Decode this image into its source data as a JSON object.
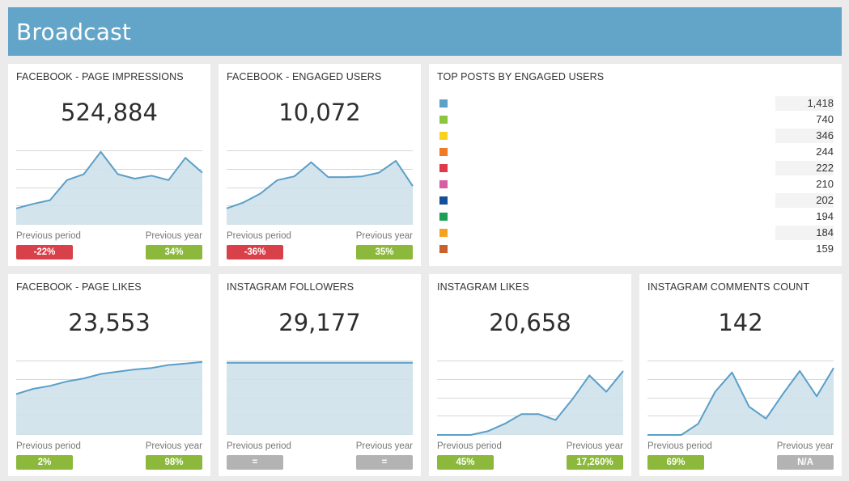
{
  "header": {
    "title": "Broadcast"
  },
  "labels": {
    "previous_period": "Previous period",
    "previous_year": "Previous year"
  },
  "cards": [
    {
      "title": "FACEBOOK - PAGE IMPRESSIONS",
      "value": "524,884",
      "series": [
        0.22,
        0.28,
        0.33,
        0.6,
        0.68,
        0.98,
        0.68,
        0.62,
        0.66,
        0.6,
        0.9,
        0.7
      ],
      "prev_period": {
        "text": "-22%",
        "status": "red"
      },
      "prev_year": {
        "text": "34%",
        "status": "green"
      }
    },
    {
      "title": "FACEBOOK - ENGAGED USERS",
      "value": "10,072",
      "series": [
        0.22,
        0.3,
        0.42,
        0.6,
        0.65,
        0.84,
        0.64,
        0.64,
        0.65,
        0.7,
        0.86,
        0.52
      ],
      "prev_period": {
        "text": "-36%",
        "status": "red"
      },
      "prev_year": {
        "text": "35%",
        "status": "green"
      }
    },
    {
      "title": "FACEBOOK - PAGE LIKES",
      "value": "23,553",
      "series": [
        0.55,
        0.62,
        0.66,
        0.72,
        0.76,
        0.82,
        0.85,
        0.88,
        0.9,
        0.94,
        0.96,
        0.98
      ],
      "prev_period": {
        "text": "2%",
        "status": "green"
      },
      "prev_year": {
        "text": "98%",
        "status": "green"
      }
    },
    {
      "title": "INSTAGRAM FOLLOWERS",
      "value": "29,177",
      "series": [
        0.97,
        0.97,
        0.97,
        0.97,
        0.97,
        0.97,
        0.97,
        0.97,
        0.97,
        0.97,
        0.97,
        0.97
      ],
      "prev_period": {
        "text": "=",
        "status": "gray"
      },
      "prev_year": {
        "text": "=",
        "status": "gray"
      }
    },
    {
      "title": "INSTAGRAM LIKES",
      "value": "20,658",
      "series": [
        0.0,
        0.0,
        0.0,
        0.05,
        0.15,
        0.28,
        0.28,
        0.2,
        0.48,
        0.8,
        0.58,
        0.86
      ],
      "prev_period": {
        "text": "45%",
        "status": "green"
      },
      "prev_year": {
        "text": "17,260%",
        "status": "green"
      }
    },
    {
      "title": "INSTAGRAM COMMENTS COUNT",
      "value": "142",
      "series": [
        0.0,
        0.0,
        0.0,
        0.15,
        0.58,
        0.84,
        0.38,
        0.22,
        0.55,
        0.86,
        0.52,
        0.9
      ],
      "prev_period": {
        "text": "69%",
        "status": "green"
      },
      "prev_year": {
        "text": "N/A",
        "status": "gray"
      }
    }
  ],
  "top_posts": {
    "title": "TOP POSTS BY ENGAGED USERS",
    "items": [
      {
        "color": "#5ea1c6",
        "value": "1,418"
      },
      {
        "color": "#8cc63f",
        "value": "740"
      },
      {
        "color": "#f5d31f",
        "value": "346"
      },
      {
        "color": "#f07b22",
        "value": "244"
      },
      {
        "color": "#e03a48",
        "value": "222"
      },
      {
        "color": "#d85ea4",
        "value": "210"
      },
      {
        "color": "#134f9a",
        "value": "202"
      },
      {
        "color": "#1f9e56",
        "value": "194"
      },
      {
        "color": "#f5a31f",
        "value": "184"
      },
      {
        "color": "#c95f2a",
        "value": "159"
      }
    ]
  },
  "colors": {
    "line": "#5a9fc8",
    "fill": "#cfe1ea",
    "grid": "#d7d7d7"
  }
}
